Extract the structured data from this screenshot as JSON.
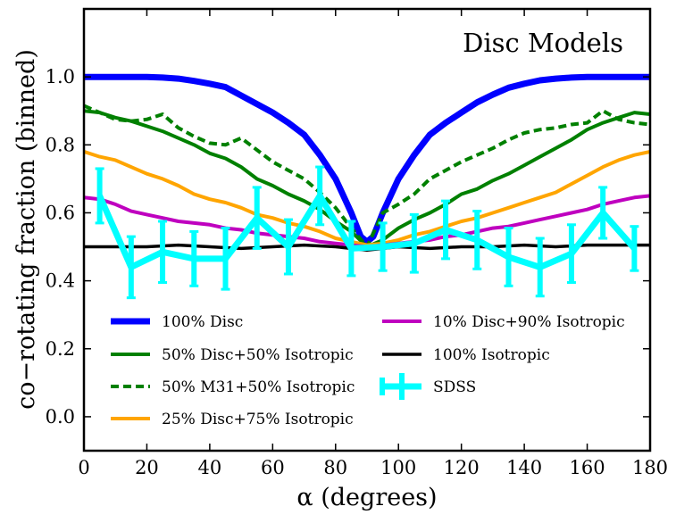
{
  "chart_data": {
    "type": "line",
    "title": "Disc Models",
    "xlabel": "α (degrees)",
    "ylabel": "co−rotating fraction (binned)",
    "xlim": [
      0,
      180
    ],
    "ylim": [
      -0.1,
      1.2
    ],
    "xticks": [
      0,
      20,
      40,
      60,
      80,
      100,
      120,
      140,
      160,
      180
    ],
    "xtick_labels": [
      "0",
      "20",
      "40",
      "60",
      "80",
      "100",
      "120",
      "140",
      "160",
      "180"
    ],
    "yticks": [
      0.0,
      0.2,
      0.4,
      0.6,
      0.8,
      1.0
    ],
    "ytick_labels": [
      "0.0",
      "0.2",
      "0.4",
      "0.6",
      "0.8",
      "1.0"
    ],
    "grid": false,
    "legend_position": "lower center, two columns",
    "series": [
      {
        "name": "100% Disc",
        "color": "#0000ff",
        "style": "solid",
        "x": [
          0,
          10,
          20,
          25,
          30,
          35,
          40,
          45,
          50,
          55,
          60,
          65,
          70,
          75,
          80,
          85,
          88,
          90,
          92,
          95,
          100,
          105,
          110,
          115,
          120,
          125,
          130,
          135,
          140,
          145,
          150,
          155,
          160,
          170,
          180
        ],
        "y": [
          1.0,
          1.0,
          1.0,
          0.998,
          0.995,
          0.988,
          0.98,
          0.97,
          0.945,
          0.92,
          0.895,
          0.865,
          0.83,
          0.77,
          0.7,
          0.6,
          0.53,
          0.515,
          0.53,
          0.6,
          0.7,
          0.77,
          0.83,
          0.865,
          0.895,
          0.925,
          0.948,
          0.968,
          0.98,
          0.99,
          0.995,
          0.998,
          1.0,
          1.0,
          1.0
        ]
      },
      {
        "name": "50% Disc+50% Isotropic",
        "color": "#008000",
        "style": "solid",
        "x": [
          0,
          5,
          10,
          15,
          20,
          25,
          30,
          35,
          40,
          45,
          50,
          55,
          60,
          65,
          70,
          75,
          80,
          85,
          90,
          95,
          100,
          105,
          110,
          115,
          120,
          125,
          130,
          135,
          140,
          145,
          150,
          155,
          160,
          165,
          170,
          175,
          180
        ],
        "y": [
          0.9,
          0.895,
          0.88,
          0.87,
          0.855,
          0.84,
          0.82,
          0.8,
          0.775,
          0.76,
          0.735,
          0.7,
          0.68,
          0.655,
          0.635,
          0.61,
          0.575,
          0.545,
          0.5,
          0.52,
          0.555,
          0.58,
          0.6,
          0.625,
          0.655,
          0.67,
          0.695,
          0.715,
          0.74,
          0.765,
          0.79,
          0.815,
          0.845,
          0.865,
          0.88,
          0.895,
          0.89
        ]
      },
      {
        "name": "50% M31+50% Isotropic",
        "color": "#008000",
        "style": "dashed",
        "x": [
          0,
          5,
          10,
          15,
          20,
          25,
          30,
          35,
          40,
          45,
          50,
          55,
          60,
          65,
          70,
          75,
          80,
          85,
          90,
          95,
          100,
          105,
          110,
          115,
          120,
          125,
          130,
          135,
          140,
          145,
          150,
          155,
          160,
          165,
          170,
          175,
          180
        ],
        "y": [
          0.915,
          0.895,
          0.875,
          0.87,
          0.875,
          0.89,
          0.85,
          0.825,
          0.805,
          0.8,
          0.82,
          0.785,
          0.75,
          0.725,
          0.7,
          0.66,
          0.615,
          0.555,
          0.5,
          0.6,
          0.625,
          0.655,
          0.7,
          0.725,
          0.75,
          0.77,
          0.79,
          0.815,
          0.835,
          0.845,
          0.85,
          0.86,
          0.865,
          0.9,
          0.875,
          0.865,
          0.86
        ]
      },
      {
        "name": "25% Disc+75% Isotropic",
        "color": "#ffa500",
        "style": "solid",
        "x": [
          0,
          5,
          10,
          15,
          20,
          25,
          30,
          35,
          40,
          45,
          50,
          55,
          60,
          65,
          70,
          75,
          80,
          85,
          90,
          95,
          100,
          105,
          110,
          115,
          120,
          125,
          130,
          135,
          140,
          145,
          150,
          155,
          160,
          165,
          170,
          175,
          180
        ],
        "y": [
          0.78,
          0.765,
          0.755,
          0.735,
          0.715,
          0.7,
          0.68,
          0.655,
          0.64,
          0.63,
          0.615,
          0.595,
          0.585,
          0.57,
          0.56,
          0.545,
          0.525,
          0.515,
          0.505,
          0.51,
          0.52,
          0.535,
          0.545,
          0.56,
          0.575,
          0.585,
          0.6,
          0.615,
          0.63,
          0.645,
          0.66,
          0.685,
          0.71,
          0.735,
          0.755,
          0.77,
          0.78
        ]
      },
      {
        "name": "10% Disc+90% Isotropic",
        "color": "#bf00bf",
        "style": "solid",
        "x": [
          0,
          5,
          10,
          15,
          20,
          25,
          30,
          35,
          40,
          45,
          50,
          55,
          60,
          65,
          70,
          75,
          80,
          85,
          90,
          95,
          100,
          105,
          110,
          115,
          120,
          125,
          130,
          135,
          140,
          145,
          150,
          155,
          160,
          165,
          170,
          175,
          180
        ],
        "y": [
          0.645,
          0.64,
          0.625,
          0.605,
          0.595,
          0.585,
          0.575,
          0.57,
          0.565,
          0.555,
          0.55,
          0.54,
          0.535,
          0.53,
          0.525,
          0.515,
          0.51,
          0.505,
          0.5,
          0.505,
          0.51,
          0.515,
          0.52,
          0.53,
          0.535,
          0.545,
          0.555,
          0.56,
          0.57,
          0.58,
          0.59,
          0.6,
          0.61,
          0.625,
          0.635,
          0.645,
          0.65
        ]
      },
      {
        "name": "100% Isotropic",
        "color": "#000000",
        "style": "solid",
        "x": [
          0,
          10,
          20,
          30,
          40,
          50,
          60,
          70,
          80,
          90,
          100,
          110,
          120,
          130,
          140,
          150,
          160,
          170,
          180
        ],
        "y": [
          0.5,
          0.5,
          0.5,
          0.505,
          0.5,
          0.495,
          0.5,
          0.505,
          0.5,
          0.49,
          0.5,
          0.495,
          0.5,
          0.5,
          0.505,
          0.5,
          0.505,
          0.505,
          0.505
        ]
      }
    ],
    "errorbar_series": {
      "name": "SDSS",
      "color": "#00ffff",
      "x": [
        5,
        15,
        25,
        35,
        45,
        55,
        65,
        75,
        85,
        95,
        105,
        115,
        125,
        135,
        145,
        155,
        165,
        175
      ],
      "y": [
        0.65,
        0.44,
        0.485,
        0.465,
        0.465,
        0.585,
        0.5,
        0.65,
        0.495,
        0.5,
        0.51,
        0.55,
        0.52,
        0.47,
        0.44,
        0.48,
        0.6,
        0.495
      ],
      "yerr": [
        0.08,
        0.09,
        0.09,
        0.08,
        0.09,
        0.09,
        0.08,
        0.085,
        0.08,
        0.07,
        0.085,
        0.085,
        0.085,
        0.085,
        0.085,
        0.085,
        0.075,
        0.065
      ]
    }
  }
}
